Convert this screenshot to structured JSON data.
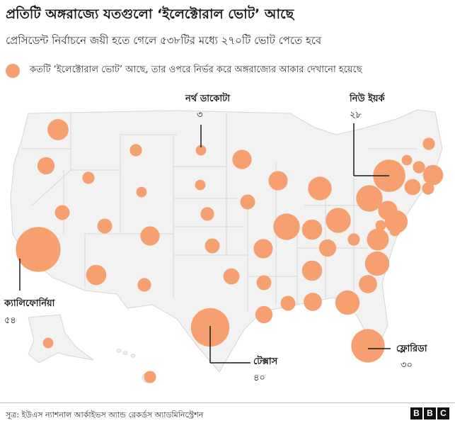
{
  "title": "প্রতিটি অঙ্গরাজ্যে যতগুলো ‘ইলেক্টোরাল ভোট’ আছে",
  "subtitle": "প্রেসিডেন্ট নির্বাচনে জয়ী হতে গেলে ৫৩৮টির মধ্যে ২৭০টি ভোট পেতে হবে",
  "legend": {
    "text": "কতটি ‘ইলেক্টোরাল ভোট’ আছে, তার ওপরে নির্ভর করে অঙ্গরাজ্যের আকার দেখানো হয়েছে",
    "color": "#f5a06e"
  },
  "colors": {
    "bubble": "#f5a06e",
    "land": "#f2f2f2",
    "border": "#d6d6d6",
    "line": "#1a1a1a"
  },
  "callouts": {
    "north_dakota": {
      "name": "নর্থ ডাকোটা",
      "value": "৩"
    },
    "new_york": {
      "name": "নিউ ইয়র্ক",
      "value": "২৮"
    },
    "california": {
      "name": "ক্যালিফোর্নিয়া",
      "value": "৫৪"
    },
    "texas": {
      "name": "টেক্সাস",
      "value": "৪০"
    },
    "florida": {
      "name": "ফ্লোরিডা",
      "value": "৩০"
    }
  },
  "map_data": {
    "type": "bubble-map",
    "states": [
      {
        "code": "AL",
        "votes": 9
      },
      {
        "code": "AK",
        "votes": 3
      },
      {
        "code": "AZ",
        "votes": 11
      },
      {
        "code": "AR",
        "votes": 6
      },
      {
        "code": "CA",
        "votes": 54
      },
      {
        "code": "CO",
        "votes": 10
      },
      {
        "code": "CT",
        "votes": 7
      },
      {
        "code": "DE",
        "votes": 3
      },
      {
        "code": "DC",
        "votes": 3
      },
      {
        "code": "FL",
        "votes": 30
      },
      {
        "code": "GA",
        "votes": 16
      },
      {
        "code": "HI",
        "votes": 4
      },
      {
        "code": "ID",
        "votes": 4
      },
      {
        "code": "IL",
        "votes": 19
      },
      {
        "code": "IN",
        "votes": 11
      },
      {
        "code": "IA",
        "votes": 6
      },
      {
        "code": "KS",
        "votes": 6
      },
      {
        "code": "KY",
        "votes": 8
      },
      {
        "code": "LA",
        "votes": 8
      },
      {
        "code": "ME",
        "votes": 4
      },
      {
        "code": "MD",
        "votes": 10
      },
      {
        "code": "MA",
        "votes": 11
      },
      {
        "code": "MI",
        "votes": 15
      },
      {
        "code": "MN",
        "votes": 10
      },
      {
        "code": "MS",
        "votes": 6
      },
      {
        "code": "MO",
        "votes": 10
      },
      {
        "code": "MT",
        "votes": 4
      },
      {
        "code": "NE",
        "votes": 5
      },
      {
        "code": "NV",
        "votes": 6
      },
      {
        "code": "NH",
        "votes": 4
      },
      {
        "code": "NJ",
        "votes": 14
      },
      {
        "code": "NM",
        "votes": 5
      },
      {
        "code": "NY",
        "votes": 28
      },
      {
        "code": "NC",
        "votes": 16
      },
      {
        "code": "ND",
        "votes": 3
      },
      {
        "code": "OH",
        "votes": 17
      },
      {
        "code": "OK",
        "votes": 7
      },
      {
        "code": "OR",
        "votes": 8
      },
      {
        "code": "PA",
        "votes": 19
      },
      {
        "code": "RI",
        "votes": 4
      },
      {
        "code": "SC",
        "votes": 9
      },
      {
        "code": "SD",
        "votes": 3
      },
      {
        "code": "TN",
        "votes": 11
      },
      {
        "code": "TX",
        "votes": 40
      },
      {
        "code": "UT",
        "votes": 6
      },
      {
        "code": "VT",
        "votes": 3
      },
      {
        "code": "VA",
        "votes": 13
      },
      {
        "code": "WA",
        "votes": 12
      },
      {
        "code": "WV",
        "votes": 4
      },
      {
        "code": "WI",
        "votes": 10
      },
      {
        "code": "WY",
        "votes": 3
      }
    ]
  },
  "source": "সূত্র: ইউএস ন্যাশনাল আর্কাইভস অ্যান্ড রেকর্ডস অ্যাডমিনিস্ট্রেশন",
  "logo": [
    "B",
    "B",
    "C"
  ]
}
